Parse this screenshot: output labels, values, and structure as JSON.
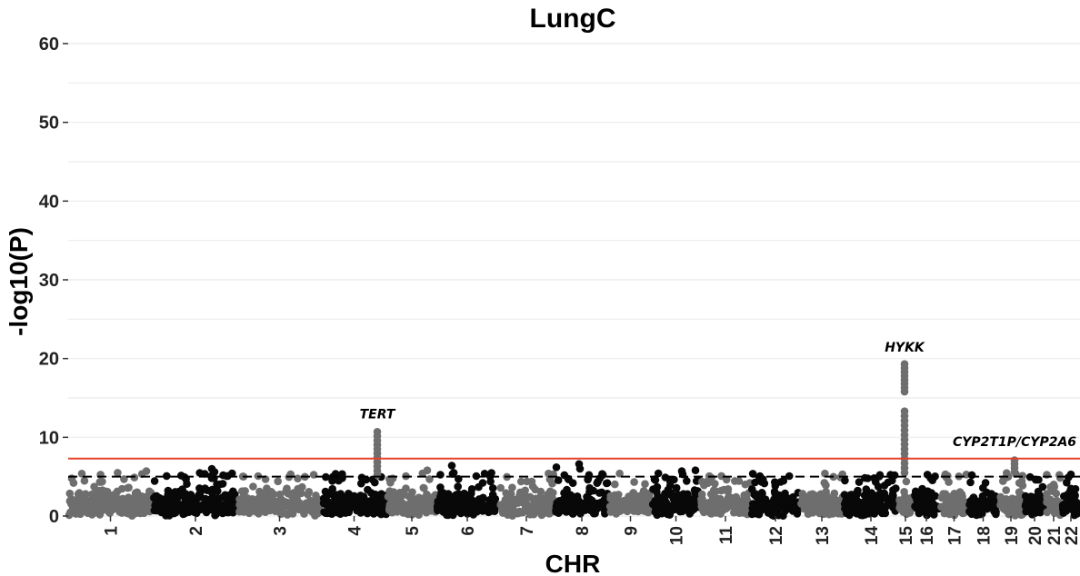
{
  "chart_data": {
    "type": "scatter",
    "subtype": "manhattan",
    "title": "LungC",
    "xlabel": "CHR",
    "ylabel": "-log10(P)",
    "ylim": [
      0,
      60
    ],
    "yticks": [
      0,
      10,
      20,
      30,
      40,
      50,
      60
    ],
    "grid": true,
    "chromosomes": [
      "1",
      "2",
      "3",
      "4",
      "5",
      "6",
      "7",
      "8",
      "9",
      "10",
      "11",
      "12",
      "13",
      "14",
      "15",
      "16",
      "17",
      "18",
      "19",
      "20",
      "21",
      "22"
    ],
    "significance_line": {
      "value": 7.3,
      "color": "#e8402a",
      "style": "solid"
    },
    "suggestive_line": {
      "value": 5,
      "color": "#000000",
      "style": "dashed"
    },
    "colors": {
      "odd_chr": "#6e6e6e",
      "even_chr": "#080808"
    },
    "annotations": [
      {
        "label": "TERT",
        "chr": "5",
        "peak": 11
      },
      {
        "label": "HYKK",
        "chr": "15",
        "peak": 19.5
      },
      {
        "label": "CYP2T1P/CYP2A6",
        "chr": "19",
        "peak": 7.5
      }
    ]
  }
}
